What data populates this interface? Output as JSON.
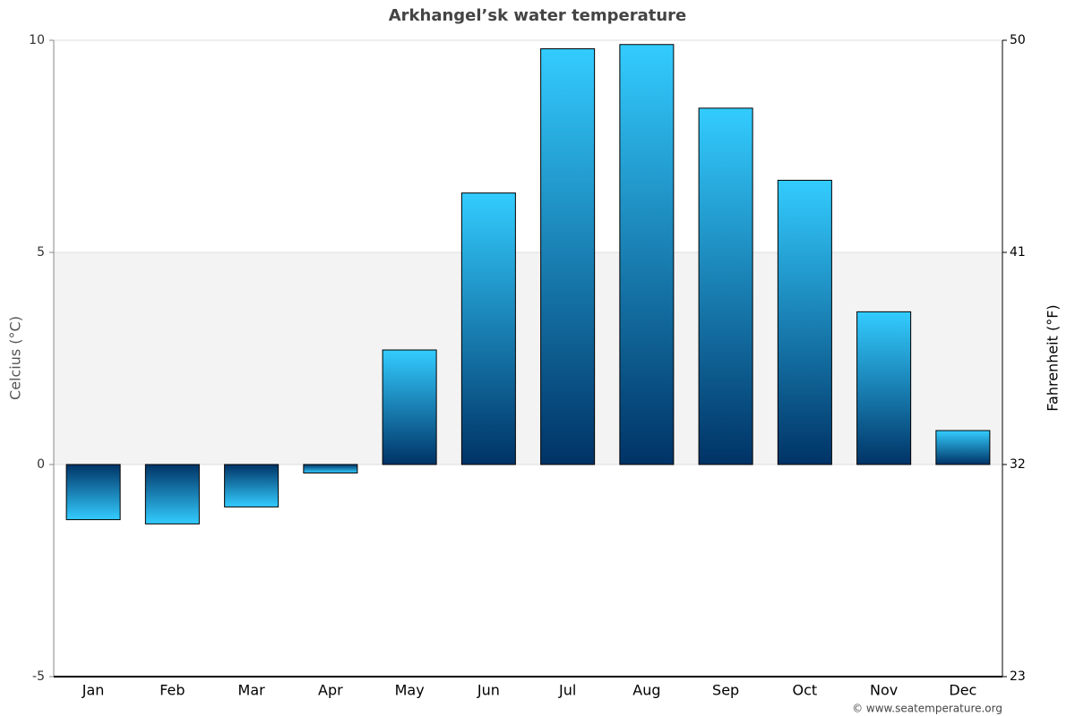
{
  "chart_data": {
    "type": "bar",
    "title": "Arkhangel’sk water temperature",
    "categories": [
      "Jan",
      "Feb",
      "Mar",
      "Apr",
      "May",
      "Jun",
      "Jul",
      "Aug",
      "Sep",
      "Oct",
      "Nov",
      "Dec"
    ],
    "values": [
      -1.3,
      -1.4,
      -1.0,
      -0.2,
      2.7,
      6.4,
      9.8,
      9.9,
      8.4,
      6.7,
      3.6,
      0.8
    ],
    "gradient": [
      "#003366",
      "#33ccff"
    ],
    "ylabel": "Celcius (°C)",
    "ylim": [
      -5,
      10
    ],
    "yticks": [
      -5,
      0,
      5,
      10
    ],
    "y2label": "Fahrenheit (°F)",
    "y2lim": [
      23,
      50
    ],
    "y2ticks": [
      23,
      32,
      41,
      50
    ],
    "shaded_band": [
      0,
      5
    ],
    "grid": true,
    "source": "© www.seatemperature.org"
  }
}
